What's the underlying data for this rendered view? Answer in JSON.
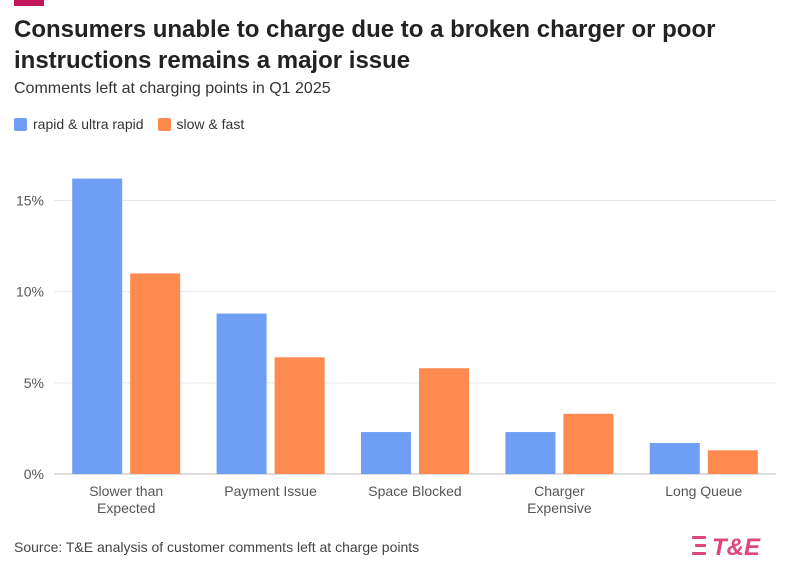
{
  "header": {
    "title": "Consumers unable to charge due to a broken charger or poor instructions remains a major issue",
    "subtitle": "Comments left at charging points in Q1 2025"
  },
  "colors": {
    "accent": "#c2185b",
    "rapid": "#6f9ef5",
    "slow": "#ff8a50",
    "logo": "#e0457b"
  },
  "footer": {
    "source": "Source: T&E analysis of customer comments left at charge points",
    "logo_text": "T&E"
  },
  "chart_data": {
    "type": "bar",
    "categories": [
      "Slower than Expected",
      "Payment Issue",
      "Space Blocked",
      "Charger Expensive",
      "Long Queue"
    ],
    "category_lines": [
      [
        "Slower than",
        "Expected"
      ],
      [
        "Payment Issue"
      ],
      [
        "Space Blocked"
      ],
      [
        "Charger",
        "Expensive"
      ],
      [
        "Long Queue"
      ]
    ],
    "series": [
      {
        "name": "rapid & ultra rapid",
        "values": [
          16.2,
          8.8,
          2.3,
          2.3,
          1.7
        ]
      },
      {
        "name": "slow & fast",
        "values": [
          11.0,
          6.4,
          5.8,
          3.3,
          1.3
        ]
      }
    ],
    "ylim": [
      0,
      17
    ],
    "yticks": [
      0,
      5,
      10,
      15
    ],
    "ytick_labels": [
      "0%",
      "5%",
      "10%",
      "15%"
    ],
    "grid": true,
    "legend": "top-left"
  }
}
